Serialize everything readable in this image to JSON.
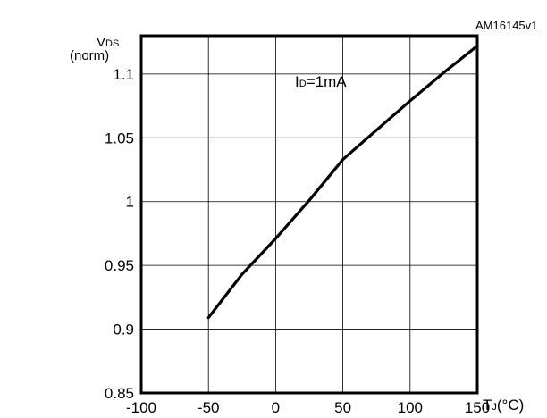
{
  "figure_code": "AM16145v1",
  "chart_data": {
    "type": "line",
    "ylabel": {
      "main": "V",
      "subscript": "DS",
      "unit": "(norm)"
    },
    "xlabel": {
      "main": "T",
      "subscript": "J",
      "unit": "(°C)"
    },
    "annotation": {
      "main": "I",
      "subscript": "D",
      "rest": "=1mA"
    },
    "xlim": [
      -100,
      150
    ],
    "ylim": [
      0.85,
      1.13
    ],
    "x_ticks": [
      -100,
      -50,
      0,
      50,
      100,
      150
    ],
    "x_tick_labels": [
      "-100",
      "-50",
      "0",
      "50",
      "100",
      "150"
    ],
    "y_ticks": [
      0.85,
      0.9,
      0.95,
      1.0,
      1.05,
      1.1
    ],
    "y_tick_labels": [
      "0.85",
      "0.9",
      "0.95",
      "1",
      "1.05",
      "1.1"
    ],
    "grid": true,
    "series": [
      {
        "x": [
          -50,
          -25,
          0,
          25,
          50,
          75,
          100,
          125,
          150
        ],
        "y": [
          0.909,
          0.943,
          0.971,
          1.001,
          1.033,
          1.056,
          1.079,
          1.101,
          1.122
        ]
      }
    ]
  }
}
